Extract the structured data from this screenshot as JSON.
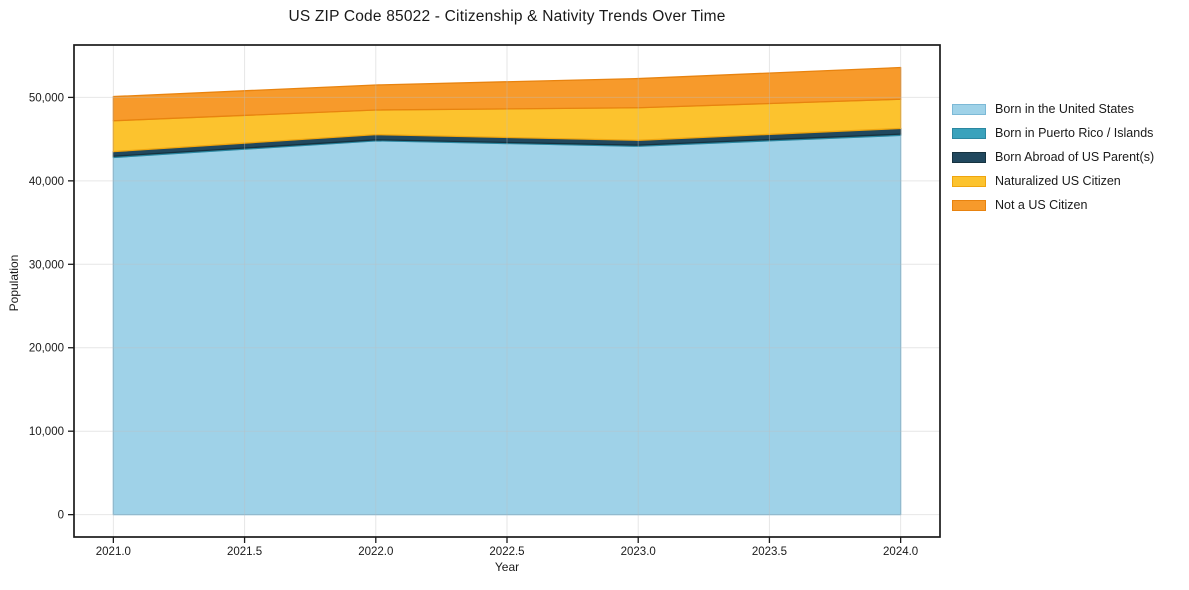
{
  "figure": {
    "background": "#ffffff",
    "axis_color": "#1a1a1a",
    "grid_color": "#ebebeb"
  },
  "chart_data": {
    "type": "area",
    "stacked": true,
    "title": "US ZIP Code 85022 - Citizenship & Nativity Trends Over Time",
    "xlabel": "Year",
    "ylabel": "Population",
    "x": [
      2021,
      2022,
      2023,
      2024
    ],
    "series": [
      {
        "name": "Born in the United States",
        "color": "#9fd2e8",
        "edge": "#7cb9d6",
        "values": [
          42800,
          44800,
          44150,
          45450
        ]
      },
      {
        "name": "Born in Puerto Rico / Islands",
        "color": "#3aa2bc",
        "edge": "#2b87a0",
        "values": [
          150,
          120,
          130,
          150
        ]
      },
      {
        "name": "Born Abroad of US Parent(s)",
        "color": "#21485e",
        "edge": "#16323f",
        "values": [
          550,
          620,
          580,
          680
        ]
      },
      {
        "name": "Naturalized US Citizen",
        "color": "#fcc32e",
        "edge": "#efa50f",
        "values": [
          3700,
          2950,
          3900,
          3500
        ]
      },
      {
        "name": "Not a US Citizen",
        "color": "#f79a2b",
        "edge": "#e8830f",
        "values": [
          2900,
          3000,
          3500,
          3800
        ]
      }
    ],
    "xlim": [
      2020.85,
      2024.15
    ],
    "ylim": [
      -2680,
      56280
    ],
    "xticks": [
      2021.0,
      2021.5,
      2022.0,
      2022.5,
      2023.0,
      2023.5,
      2024.0
    ],
    "xtick_labels": [
      "2021.0",
      "2021.5",
      "2022.0",
      "2022.5",
      "2023.0",
      "2023.5",
      "2024.0"
    ],
    "yticks": [
      0,
      10000,
      20000,
      30000,
      40000,
      50000
    ],
    "ytick_labels": [
      "0",
      "10,000",
      "20,000",
      "30,000",
      "40,000",
      "50,000"
    ],
    "grid": true,
    "legend_position": "right"
  }
}
